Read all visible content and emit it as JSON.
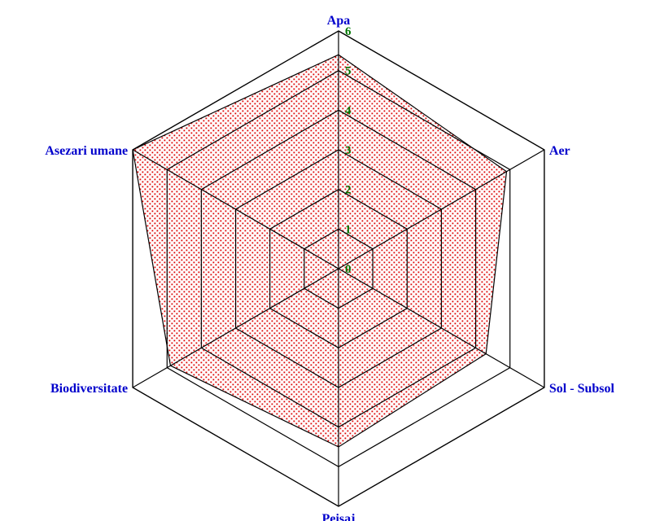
{
  "chart_data": {
    "type": "radar",
    "axes": [
      "Apa",
      "Aer",
      "Sol - Subsol",
      "Peisaj",
      "Biodiversitate",
      "Asezari umane"
    ],
    "axis_labels_displayed": [
      "Apa",
      "Aer",
      "Sol - Subsol",
      "Peisaj",
      "Biodiversitate",
      "Asezari umane"
    ],
    "rlim": [
      0,
      6
    ],
    "ticks": [
      "0",
      "1",
      "2",
      "3",
      "4",
      "5",
      "6"
    ],
    "series": [
      {
        "values": [
          5.4,
          4.9,
          4.3,
          4.5,
          4.9,
          6.0
        ],
        "fill": "#dd0000",
        "fill_style": "dotted"
      }
    ],
    "grid": true,
    "colors": {
      "grid": "#000000",
      "axis_label": "#0000cc",
      "tick_label": "#007700",
      "series_fill": "#dd0000"
    }
  }
}
